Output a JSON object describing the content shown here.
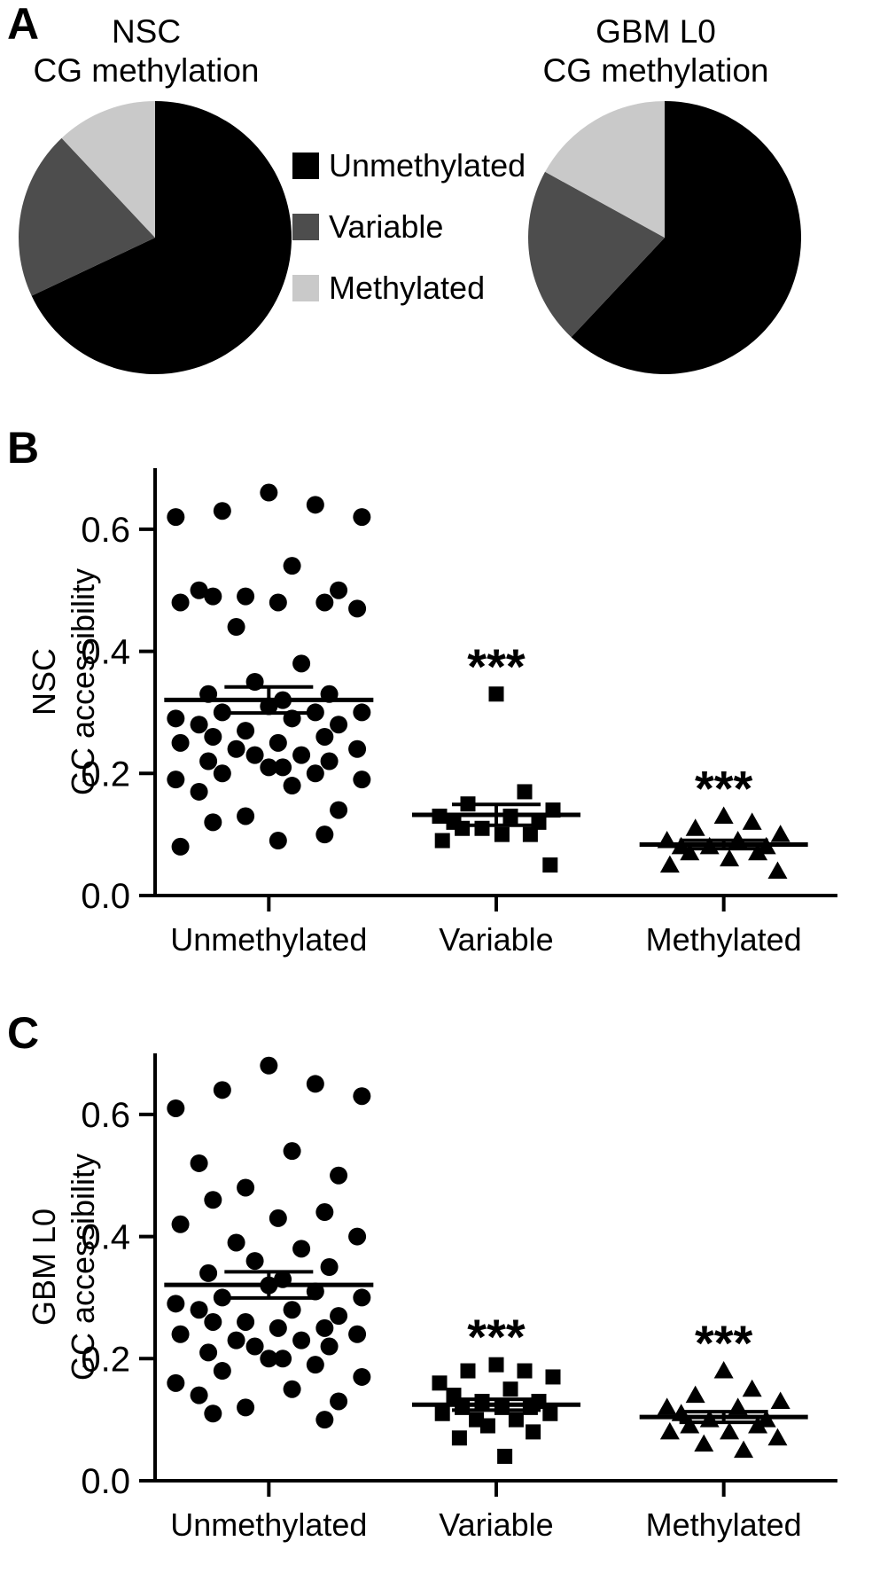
{
  "panels": {
    "a": "A",
    "b": "B",
    "c": "C"
  },
  "legend": {
    "items": [
      {
        "label": "Unmethylated",
        "color": "#000000"
      },
      {
        "label": "Variable",
        "color": "#4d4d4d"
      },
      {
        "label": "Methylated",
        "color": "#c9c9c9"
      }
    ]
  },
  "chart_data": [
    {
      "type": "pie",
      "id": "pie-nsc",
      "title": "NSC CG methylation",
      "title_lines": [
        "NSC",
        "CG methylation"
      ],
      "labels": [
        "Unmethylated",
        "Variable",
        "Methylated"
      ],
      "values": [
        68,
        20,
        12
      ],
      "colors": [
        "#000000",
        "#4d4d4d",
        "#c9c9c9"
      ],
      "start_angle_deg": -90,
      "direction": "clockwise"
    },
    {
      "type": "pie",
      "id": "pie-gbm-l0",
      "title": "GBM L0 CG methylation",
      "title_lines": [
        "GBM L0",
        "CG methylation"
      ],
      "labels": [
        "Unmethylated",
        "Variable",
        "Methylated"
      ],
      "values": [
        62,
        21,
        17
      ],
      "colors": [
        "#000000",
        "#4d4d4d",
        "#c9c9c9"
      ],
      "start_angle_deg": -90,
      "direction": "clockwise"
    },
    {
      "type": "scatter",
      "id": "scatter-nsc",
      "ylabel_lines": [
        "NSC",
        "GC accessibility"
      ],
      "ylim": [
        0,
        0.7
      ],
      "ytick_values": [
        0,
        0.2,
        0.4,
        0.6
      ],
      "ytick_labels": [
        "0.0",
        "0.2",
        "0.4",
        "0.6"
      ],
      "categories": [
        "Unmethylated",
        "Variable",
        "Methylated"
      ],
      "error": "mean_sem",
      "groups": [
        {
          "name": "Unmethylated",
          "marker": "circle",
          "values": [
            0.66,
            0.64,
            0.63,
            0.62,
            0.62,
            0.54,
            0.5,
            0.5,
            0.49,
            0.49,
            0.48,
            0.48,
            0.48,
            0.47,
            0.44,
            0.38,
            0.35,
            0.33,
            0.33,
            0.32,
            0.31,
            0.3,
            0.3,
            0.3,
            0.29,
            0.29,
            0.28,
            0.28,
            0.27,
            0.26,
            0.26,
            0.25,
            0.25,
            0.24,
            0.24,
            0.23,
            0.23,
            0.22,
            0.22,
            0.21,
            0.21,
            0.2,
            0.2,
            0.19,
            0.19,
            0.18,
            0.17,
            0.14,
            0.13,
            0.12,
            0.1,
            0.09,
            0.08
          ]
        },
        {
          "name": "Variable",
          "marker": "square",
          "values": [
            0.33,
            0.17,
            0.15,
            0.14,
            0.13,
            0.13,
            0.12,
            0.12,
            0.11,
            0.11,
            0.1,
            0.1,
            0.09,
            0.05
          ]
        },
        {
          "name": "Methylated",
          "marker": "triangle",
          "values": [
            0.13,
            0.12,
            0.11,
            0.1,
            0.09,
            0.09,
            0.08,
            0.08,
            0.08,
            0.07,
            0.07,
            0.06,
            0.05,
            0.04
          ]
        }
      ],
      "annotations": [
        {
          "category_index": 1,
          "text": "***"
        },
        {
          "category_index": 2,
          "text": "***"
        }
      ]
    },
    {
      "type": "scatter",
      "id": "scatter-gbm-l0",
      "ylabel_lines": [
        "GBM L0",
        "GC accessibility"
      ],
      "ylim": [
        0,
        0.7
      ],
      "ytick_values": [
        0,
        0.2,
        0.4,
        0.6
      ],
      "ytick_labels": [
        "0.0",
        "0.2",
        "0.4",
        "0.6"
      ],
      "categories": [
        "Unmethylated",
        "Variable",
        "Methylated"
      ],
      "error": "mean_sem",
      "groups": [
        {
          "name": "Unmethylated",
          "marker": "circle",
          "values": [
            0.68,
            0.65,
            0.64,
            0.63,
            0.61,
            0.54,
            0.52,
            0.5,
            0.48,
            0.46,
            0.44,
            0.43,
            0.42,
            0.4,
            0.39,
            0.38,
            0.36,
            0.35,
            0.34,
            0.33,
            0.32,
            0.31,
            0.3,
            0.3,
            0.29,
            0.28,
            0.28,
            0.27,
            0.26,
            0.26,
            0.25,
            0.25,
            0.24,
            0.24,
            0.23,
            0.23,
            0.22,
            0.22,
            0.21,
            0.2,
            0.2,
            0.19,
            0.18,
            0.17,
            0.16,
            0.15,
            0.14,
            0.13,
            0.12,
            0.11,
            0.1
          ]
        },
        {
          "name": "Variable",
          "marker": "square",
          "values": [
            0.19,
            0.18,
            0.18,
            0.17,
            0.16,
            0.15,
            0.14,
            0.13,
            0.13,
            0.12,
            0.12,
            0.12,
            0.11,
            0.11,
            0.1,
            0.1,
            0.09,
            0.08,
            0.07,
            0.04
          ]
        },
        {
          "name": "Methylated",
          "marker": "triangle",
          "values": [
            0.18,
            0.15,
            0.14,
            0.13,
            0.12,
            0.12,
            0.11,
            0.1,
            0.1,
            0.09,
            0.09,
            0.08,
            0.08,
            0.07,
            0.06,
            0.05
          ]
        }
      ],
      "annotations": [
        {
          "category_index": 1,
          "text": "***"
        },
        {
          "category_index": 2,
          "text": "***"
        }
      ]
    }
  ]
}
